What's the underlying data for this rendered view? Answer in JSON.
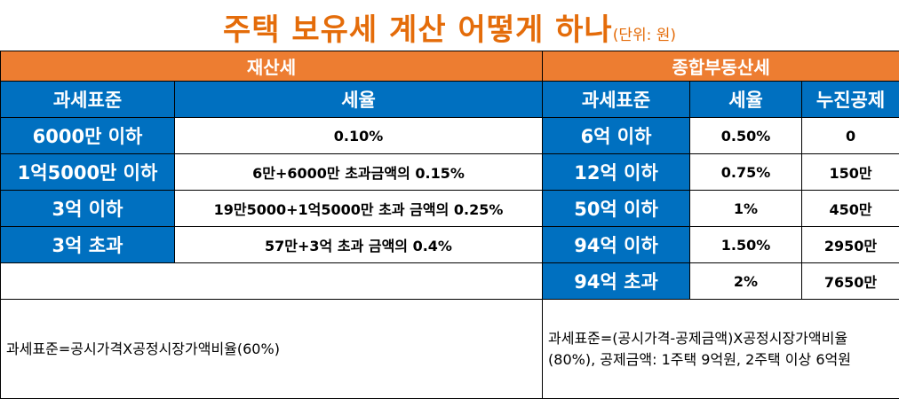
{
  "title": {
    "main": "주택 보유세 계산 어떻게 하나",
    "unit": "(단위: 원)"
  },
  "property_tax": {
    "header": "재산세",
    "col_base": "과세표준",
    "col_rate": "세율",
    "rows": [
      {
        "base": "6000만 이하",
        "rate": "0.10%"
      },
      {
        "base": "1억5000만 이하",
        "rate": "6만+6000만 초과금액의 0.15%"
      },
      {
        "base": "3억 이하",
        "rate": "19만5000+1억5000만 초과 금액의 0.25%"
      },
      {
        "base": "3억 초과",
        "rate": "57만+3억 초과 금액의 0.4%"
      }
    ],
    "note": "과세표준=공시가격X공정시장가액비율(60%)"
  },
  "comprehensive_tax": {
    "header": "종합부동산세",
    "col_base": "과세표준",
    "col_rate": "세율",
    "col_deduction": "누진공제",
    "rows": [
      {
        "base": "6억 이하",
        "rate": "0.50%",
        "deduction": "0"
      },
      {
        "base": "12억 이하",
        "rate": "0.75%",
        "deduction": "150만"
      },
      {
        "base": "50억 이하",
        "rate": "1%",
        "deduction": "450만"
      },
      {
        "base": "94억 이하",
        "rate": "1.50%",
        "deduction": "2950만"
      },
      {
        "base": "94억 초과",
        "rate": "2%",
        "deduction": "7650만"
      }
    ],
    "note": "과세표준=(공시가격-공제금액)X공정시장가액비율(80%), 공제금액: 1주택 9억원, 2주택 이상 6억원"
  },
  "colors": {
    "title": "#E46C0A",
    "section_header": "#ED7D31",
    "column_header": "#0070C0"
  }
}
